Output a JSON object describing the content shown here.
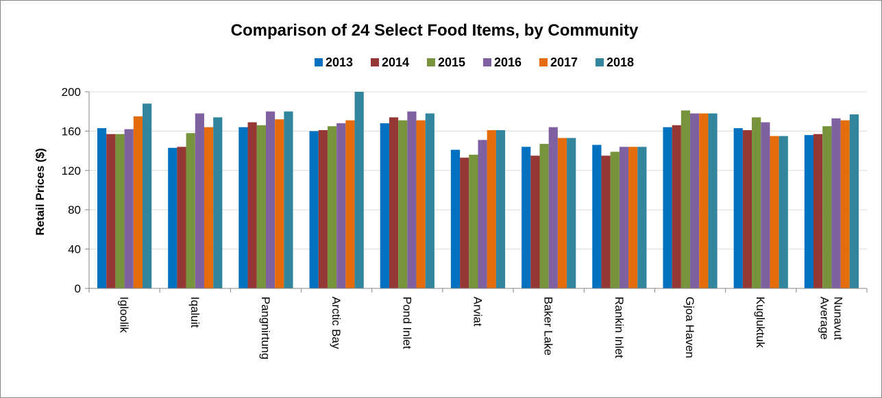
{
  "chart_data": {
    "type": "bar",
    "title": "Comparison of 24 Select Food Items, by Community",
    "ylabel": "Retail Prices ($)",
    "xlabel": "",
    "ylim": [
      0,
      200
    ],
    "yticks": [
      0,
      40,
      80,
      120,
      160,
      200
    ],
    "grid": true,
    "legend_position": "top",
    "categories": [
      [
        "Igloolik"
      ],
      [
        "Iqaluit"
      ],
      [
        "Pangnirtung"
      ],
      [
        "Arctic Bay"
      ],
      [
        "Pond Inlet"
      ],
      [
        "Arviat"
      ],
      [
        "Baker Lake"
      ],
      [
        "Rankin Inlet"
      ],
      [
        "Gjoa Haven"
      ],
      [
        "Kugluktuk"
      ],
      [
        "Nunavut",
        "Average"
      ]
    ],
    "series": [
      {
        "name": "2013",
        "color": "#0070C0",
        "values": [
          163,
          143,
          164,
          160,
          168,
          141,
          144,
          146,
          164,
          163,
          156
        ]
      },
      {
        "name": "2014",
        "color": "#953735",
        "values": [
          157,
          144,
          169,
          161,
          174,
          133,
          135,
          135,
          166,
          161,
          157
        ]
      },
      {
        "name": "2015",
        "color": "#77933C",
        "values": [
          157,
          158,
          166,
          165,
          171,
          136,
          147,
          139,
          181,
          174,
          165
        ]
      },
      {
        "name": "2016",
        "color": "#7F60A0",
        "values": [
          162,
          178,
          180,
          168,
          180,
          151,
          164,
          144,
          178,
          169,
          173
        ]
      },
      {
        "name": "2017",
        "color": "#E46C0A",
        "values": [
          175,
          164,
          172,
          171,
          171,
          161,
          153,
          144,
          178,
          155,
          171
        ]
      },
      {
        "name": "2018",
        "color": "#31859C",
        "values": [
          188,
          174,
          180,
          200,
          178,
          161,
          153,
          144,
          178,
          155,
          177
        ]
      }
    ]
  }
}
